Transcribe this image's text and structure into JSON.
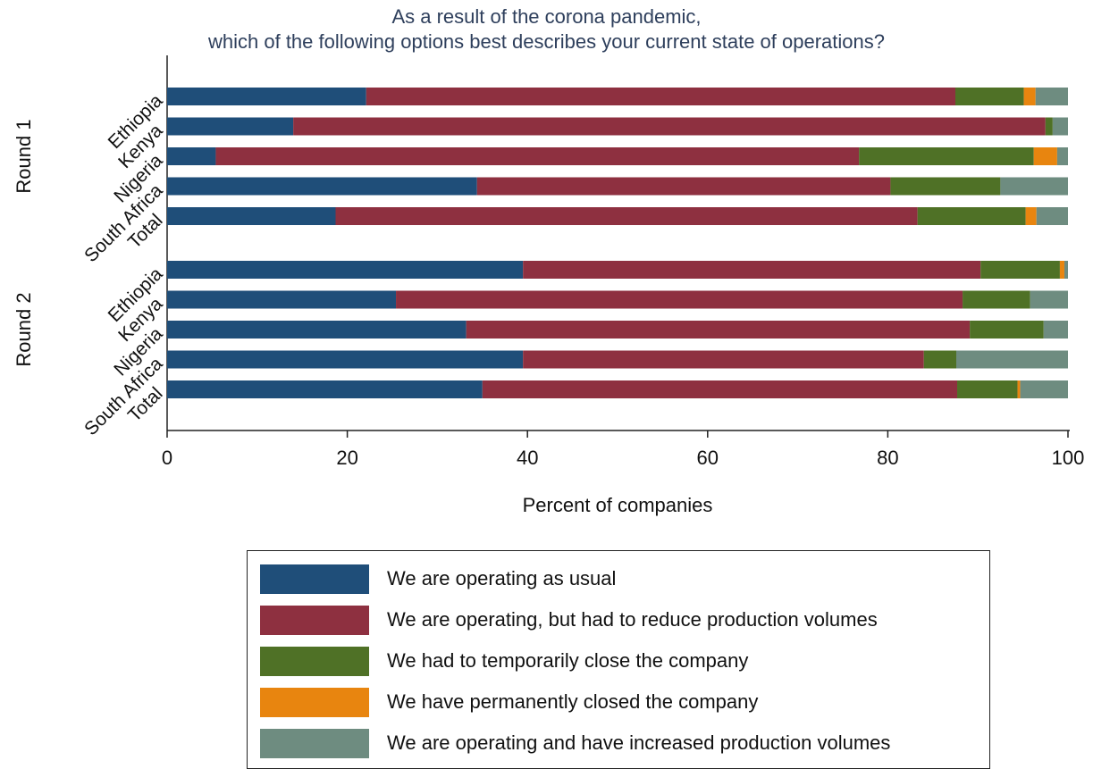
{
  "chart_data": {
    "type": "bar",
    "orientation": "horizontal",
    "stacked": true,
    "title": "As a result of the corona pandemic,",
    "subtitle": "which of the following options best describes your current state of operations?",
    "xlabel": "Percent of companies",
    "xlim": [
      0,
      100
    ],
    "xticks": [
      "0",
      "20",
      "40",
      "60",
      "80",
      "100"
    ],
    "grid": false,
    "legend_placement": "bottom",
    "groups": [
      {
        "label": "Round 1",
        "categories": [
          "Ethiopia",
          "Kenya",
          "Nigeria",
          "South Africa",
          "Total"
        ]
      },
      {
        "label": "Round 2",
        "categories": [
          "Ethiopia",
          "Kenya",
          "Nigeria",
          "South Africa",
          "Total"
        ]
      }
    ],
    "series": [
      {
        "name": "We are operating as usual",
        "color": "#1f4e79",
        "values": [
          22.1,
          14.0,
          5.4,
          34.4,
          18.7,
          39.5,
          25.4,
          33.2,
          39.5,
          35.0
        ]
      },
      {
        "name": "We are operating, but had to reduce production volumes",
        "color": "#8e3040",
        "values": [
          65.4,
          83.5,
          71.4,
          45.9,
          64.6,
          50.8,
          62.9,
          55.9,
          44.5,
          52.7
        ]
      },
      {
        "name": "We had to temporarily close the company",
        "color": "#4f7126",
        "values": [
          7.6,
          0.8,
          19.4,
          12.2,
          12.0,
          8.8,
          7.5,
          8.2,
          3.6,
          6.7
        ]
      },
      {
        "name": "We have permanently closed the company",
        "color": "#e8850f",
        "values": [
          1.3,
          0.0,
          2.6,
          0.0,
          1.2,
          0.5,
          0.0,
          0.0,
          0.0,
          0.3
        ]
      },
      {
        "name": "We are operating and have increased production volumes",
        "color": "#6e8c80",
        "values": [
          3.6,
          1.7,
          1.2,
          7.5,
          3.5,
          0.4,
          4.2,
          2.7,
          12.4,
          5.3
        ]
      }
    ]
  }
}
